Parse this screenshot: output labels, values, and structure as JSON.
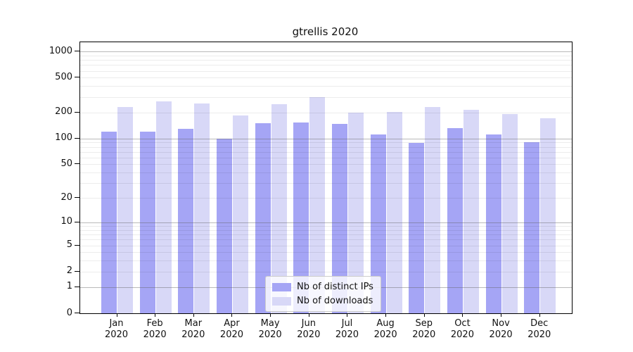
{
  "chart_data": {
    "type": "bar",
    "title": "gtrellis 2020",
    "categories": [
      "Jan 2020",
      "Feb 2020",
      "Mar 2020",
      "Apr 2020",
      "May 2020",
      "Jun 2020",
      "Jul 2020",
      "Aug 2020",
      "Sep 2020",
      "Oct 2020",
      "Nov 2020",
      "Dec 2020"
    ],
    "x_labels": [
      {
        "line1": "Jan",
        "line2": "2020"
      },
      {
        "line1": "Feb",
        "line2": "2020"
      },
      {
        "line1": "Mar",
        "line2": "2020"
      },
      {
        "line1": "Apr",
        "line2": "2020"
      },
      {
        "line1": "May",
        "line2": "2020"
      },
      {
        "line1": "Jun",
        "line2": "2020"
      },
      {
        "line1": "Jul",
        "line2": "2020"
      },
      {
        "line1": "Aug",
        "line2": "2020"
      },
      {
        "line1": "Sep",
        "line2": "2020"
      },
      {
        "line1": "Oct",
        "line2": "2020"
      },
      {
        "line1": "Nov",
        "line2": "2020"
      },
      {
        "line1": "Dec",
        "line2": "2020"
      }
    ],
    "series": [
      {
        "name": "Nb of distinct IPs",
        "color": "#a5a5f5",
        "values": [
          121,
          119,
          130,
          100,
          151,
          152,
          146,
          111,
          89,
          132,
          111,
          91
        ]
      },
      {
        "name": "Nb of downloads",
        "color": "#d8d8f7",
        "values": [
          230,
          268,
          252,
          185,
          247,
          297,
          200,
          203,
          232,
          216,
          192,
          170
        ]
      }
    ],
    "yscale": "log1p",
    "yticks": [
      0,
      1,
      2,
      5,
      10,
      20,
      50,
      100,
      200,
      500,
      1000
    ],
    "gridlines": {
      "major": [
        1,
        10,
        100,
        1000
      ],
      "minor": [
        2,
        3,
        4,
        5,
        6,
        7,
        8,
        9,
        20,
        30,
        40,
        50,
        60,
        70,
        80,
        90,
        200,
        300,
        400,
        500,
        600,
        700,
        800,
        900
      ]
    },
    "ylim": [
      0,
      1280
    ],
    "grid": true,
    "legend_position": "lower center",
    "xlabel": "",
    "ylabel": ""
  }
}
